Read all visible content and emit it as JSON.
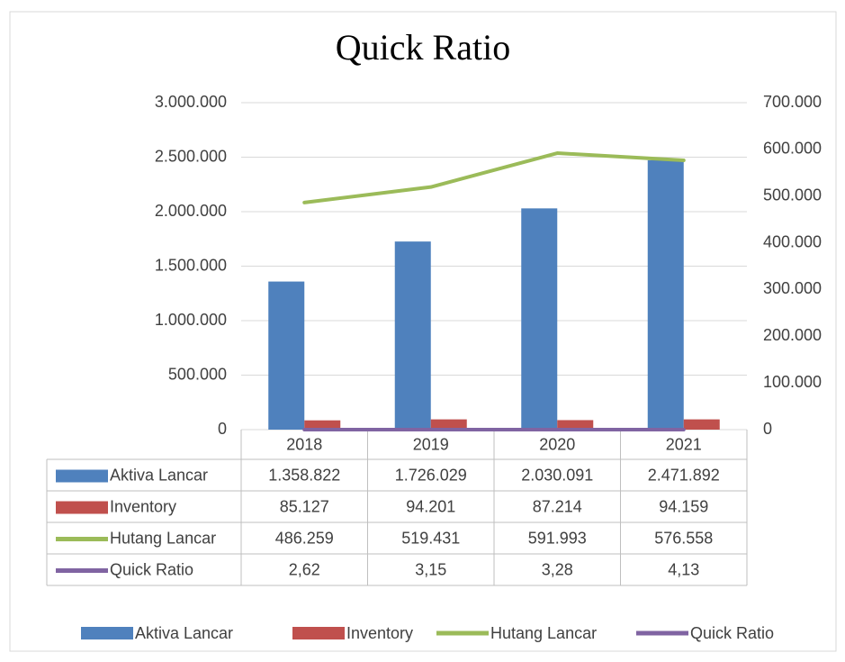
{
  "chart_data": {
    "type": "combo",
    "title": "Quick Ratio",
    "categories": [
      "2018",
      "2019",
      "2020",
      "2021"
    ],
    "series": [
      {
        "name": "Aktiva Lancar",
        "type": "bar",
        "axis": "y",
        "color": "#4f81bd",
        "values": [
          1358822,
          1726029,
          2030091,
          2471892
        ],
        "value_labels": [
          "1.358.822",
          "1.726.029",
          "2.030.091",
          "2.471.892"
        ]
      },
      {
        "name": "Inventory",
        "type": "bar",
        "axis": "y",
        "color": "#c0504d",
        "values": [
          85127,
          94201,
          87214,
          94159
        ],
        "value_labels": [
          "85.127",
          "94.201",
          "87.214",
          "94.159"
        ]
      },
      {
        "name": "Hutang Lancar",
        "type": "line",
        "axis": "y2",
        "color": "#9bbb59",
        "values": [
          486259,
          519431,
          591993,
          576558
        ],
        "value_labels": [
          "486.259",
          "519.431",
          "591.993",
          "576.558"
        ]
      },
      {
        "name": "Quick Ratio",
        "type": "line",
        "axis": "y2",
        "color": "#8064a2",
        "values": [
          2.62,
          3.15,
          3.28,
          4.13
        ],
        "value_labels": [
          "2,62",
          "3,15",
          "3,28",
          "4,13"
        ]
      }
    ],
    "ylim": [
      0,
      3000000
    ],
    "yticks": [
      0,
      {
        "value": 500000,
        "label": "500.000"
      },
      {
        "value": 1000000,
        "label": "1.000.000"
      },
      {
        "value": 1500000,
        "label": "1.500.000"
      },
      {
        "value": 2000000,
        "label": "2.000.000"
      },
      {
        "value": 2500000,
        "label": "2.500.000"
      },
      {
        "value": 3000000,
        "label": "3.000.000"
      }
    ],
    "y2lim": [
      0,
      700000
    ],
    "y2ticks": [
      0,
      {
        "value": 100000,
        "label": "100.000"
      },
      {
        "value": 200000,
        "label": "200.000"
      },
      {
        "value": 300000,
        "label": "300.000"
      },
      {
        "value": 400000,
        "label": "400.000"
      },
      {
        "value": 500000,
        "label": "500.000"
      },
      {
        "value": 600000,
        "label": "600.000"
      },
      {
        "value": 700000,
        "label": "700.000"
      }
    ],
    "grid": true,
    "legend": "bottom"
  }
}
